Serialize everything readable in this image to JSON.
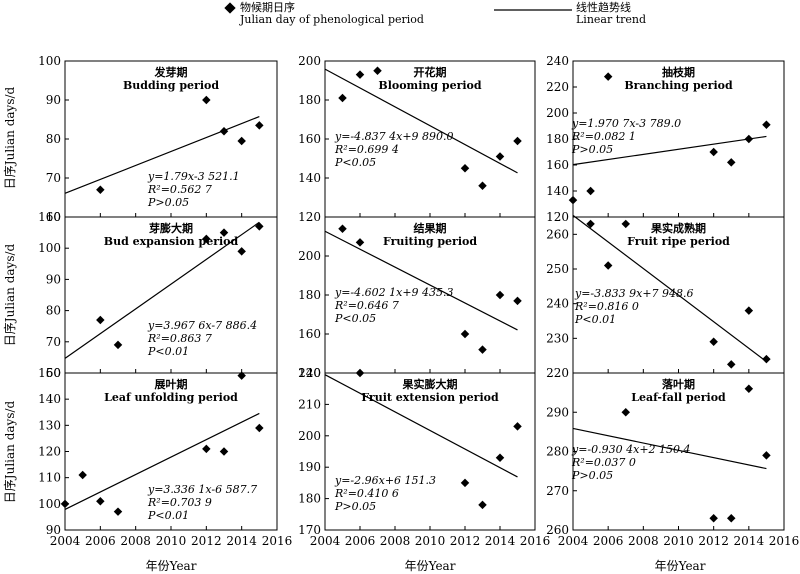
{
  "legend": {
    "points_cn": "物候期日序",
    "points_en": "Julian day of phenological period",
    "trend_cn": "线性趋势线",
    "trend_en": "Linear trend"
  },
  "ylabel": "日序Julian days/d",
  "xlabel": "年份Year",
  "xlim": [
    2004,
    2016
  ],
  "xticks": [
    "2004",
    "2006",
    "2008",
    "2010",
    "2012",
    "2014",
    "2016"
  ],
  "chart_data": [
    {
      "type": "scatter",
      "title_cn": "发芽期",
      "title_en": "Budding period",
      "ylim": [
        60,
        100
      ],
      "yticks": [
        "60",
        "70",
        "80",
        "90",
        "100"
      ],
      "x": [
        2006,
        2012,
        2013,
        2014,
        2015
      ],
      "y": [
        67,
        90,
        82,
        79.5,
        83.5
      ],
      "trend": {
        "slope": 1.79,
        "intercept": -3521.1
      },
      "eq": [
        "y=1.79x-3 521.1",
        "R²=0.562 7",
        "P>0.05"
      ]
    },
    {
      "type": "scatter",
      "title_cn": "开花期",
      "title_en": "Blooming period",
      "ylim": [
        120,
        200
      ],
      "yticks": [
        "120",
        "140",
        "160",
        "180",
        "200"
      ],
      "x": [
        2005,
        2006,
        2007,
        2012,
        2013,
        2014,
        2015
      ],
      "y": [
        181,
        193,
        195,
        145,
        136,
        151,
        159
      ],
      "trend": {
        "slope": -4.8374,
        "intercept": 9890.0
      },
      "eq": [
        "y=-4.837 4x+9 890.0",
        "R²=0.699 4",
        "P<0.05"
      ]
    },
    {
      "type": "scatter",
      "title_cn": "抽枝期",
      "title_en": "Branching period",
      "ylim": [
        120,
        240
      ],
      "yticks": [
        "120",
        "140",
        "160",
        "180",
        "200",
        "220",
        "240"
      ],
      "x": [
        2004,
        2005,
        2006,
        2012,
        2013,
        2014,
        2015
      ],
      "y": [
        133,
        140,
        228,
        170,
        162,
        180,
        191
      ],
      "trend": {
        "slope": 1.9707,
        "intercept": -3789.0
      },
      "eq": [
        "y=1.970 7x-3 789.0",
        "R²=0.082 1",
        "P>0.05"
      ]
    },
    {
      "type": "scatter",
      "title_cn": "芽膨大期",
      "title_en": "Bud expansion period",
      "ylim": [
        60,
        110
      ],
      "yticks": [
        "60",
        "70",
        "80",
        "90",
        "100",
        "110"
      ],
      "x": [
        2006,
        2007,
        2012,
        2013,
        2014,
        2015
      ],
      "y": [
        77,
        69,
        103,
        105,
        99,
        107
      ],
      "trend": {
        "slope": 3.9676,
        "intercept": -7886.4
      },
      "eq": [
        "y=3.967 6x-7 886.4",
        "R²=0.863 7",
        "P<0.01"
      ]
    },
    {
      "type": "scatter",
      "title_cn": "结果期",
      "title_en": "Fruiting period",
      "ylim": [
        140,
        220
      ],
      "yticks": [
        "140",
        "160",
        "180",
        "200"
      ],
      "x": [
        2005,
        2006,
        2012,
        2013,
        2014,
        2015
      ],
      "y": [
        214,
        207,
        160,
        152,
        180,
        177
      ],
      "trend": {
        "slope": -4.6021,
        "intercept": 9435.3
      },
      "eq": [
        "y=-4.602 1x+9 435.3",
        "R²=0.646 7",
        "P<0.05"
      ]
    },
    {
      "type": "scatter",
      "title_cn": "果实成熟期",
      "title_en": "Fruit ripe period",
      "ylim": [
        220,
        265
      ],
      "yticks": [
        "220",
        "230",
        "240",
        "250",
        "260"
      ],
      "x": [
        2005,
        2006,
        2007,
        2012,
        2013,
        2014,
        2015
      ],
      "y": [
        263,
        251,
        263,
        229,
        222.5,
        238,
        224
      ],
      "trend": {
        "slope": -3.8339,
        "intercept": 7948.6
      },
      "eq": [
        "y=-3.833 9x+7 948.6",
        "R²=0.816 0",
        "P<0.01"
      ]
    },
    {
      "type": "scatter",
      "title_cn": "展叶期",
      "title_en": "Leaf unfolding period",
      "ylim": [
        90,
        150
      ],
      "yticks": [
        "90",
        "100",
        "110",
        "120",
        "130",
        "140",
        "150"
      ],
      "x": [
        2004,
        2005,
        2006,
        2007,
        2012,
        2013,
        2014,
        2015
      ],
      "y": [
        100,
        111,
        101,
        97,
        121,
        120,
        149,
        129
      ],
      "trend": {
        "slope": 3.3361,
        "intercept": -6587.7
      },
      "eq": [
        "y=3.336 1x-6 587.7",
        "R²=0.703 9",
        "P<0.01"
      ]
    },
    {
      "type": "scatter",
      "title_cn": "果实膨大期",
      "title_en": "Fruit extension period",
      "ylim": [
        170,
        220
      ],
      "yticks": [
        "170",
        "180",
        "190",
        "200",
        "210",
        "220"
      ],
      "x": [
        2006,
        2012,
        2013,
        2014,
        2015
      ],
      "y": [
        220,
        185,
        178,
        193,
        203
      ],
      "trend": {
        "slope": -2.96,
        "intercept": 6151.3
      },
      "eq": [
        "y=-2.96x+6 151.3",
        "R²=0.410 6",
        "P>0.05"
      ]
    },
    {
      "type": "scatter",
      "title_cn": "落叶期",
      "title_en": "Leaf-fall period",
      "ylim": [
        260,
        300
      ],
      "yticks": [
        "260",
        "270",
        "280",
        "290"
      ],
      "x": [
        2007,
        2012,
        2013,
        2014,
        2015
      ],
      "y": [
        290,
        263,
        263,
        296,
        279
      ],
      "trend": {
        "slope": -0.9304,
        "intercept": 2150.4
      },
      "eq": [
        "y=-0.930 4x+2 150.4",
        "R²=0.037 0",
        "P>0.05"
      ]
    }
  ]
}
